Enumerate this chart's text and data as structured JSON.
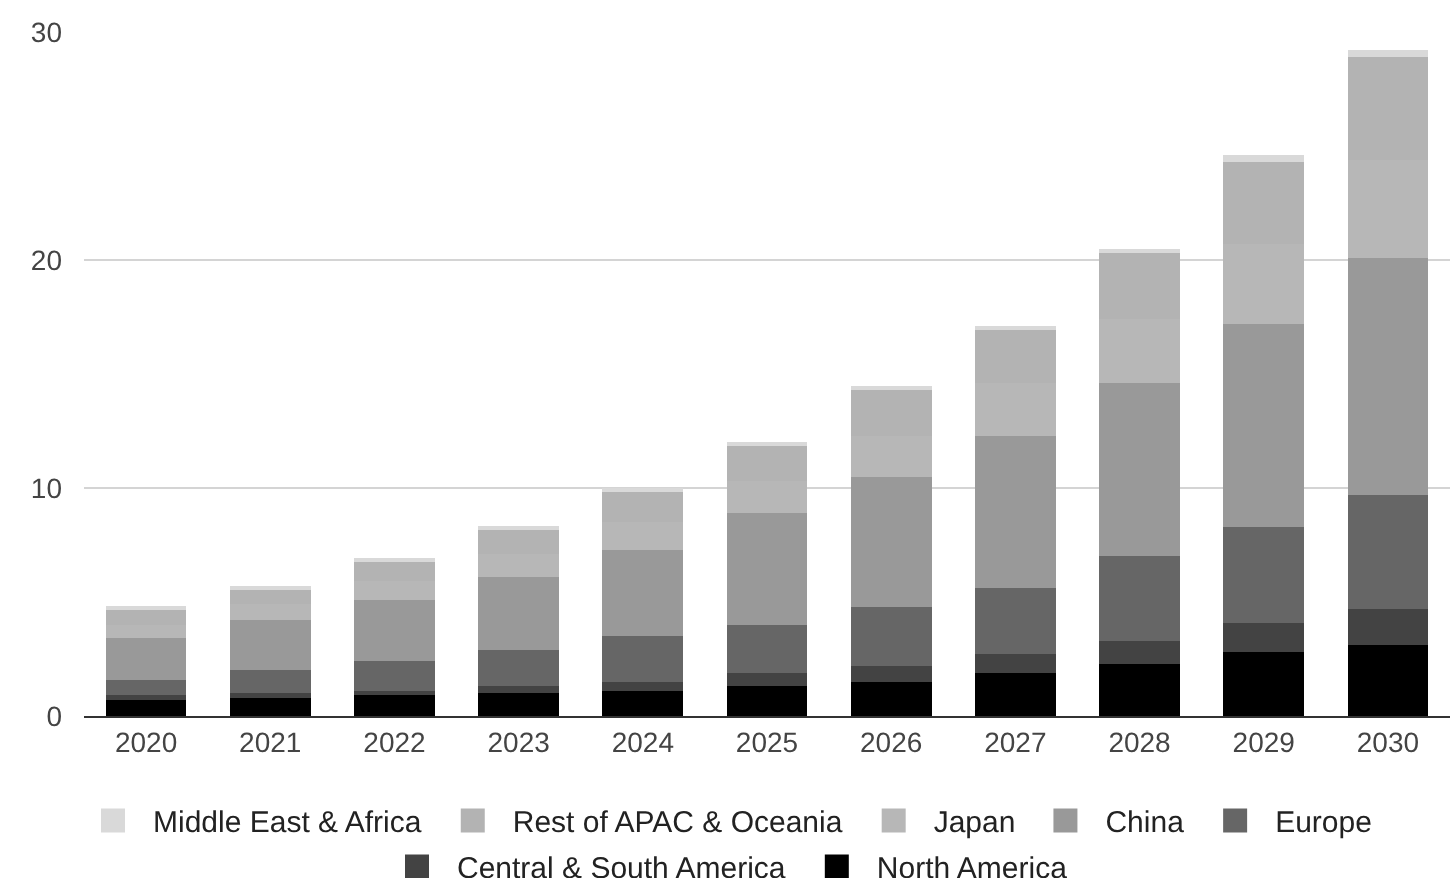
{
  "chart_data": {
    "type": "bar",
    "stacked": true,
    "categories": [
      "2020",
      "2021",
      "2022",
      "2023",
      "2024",
      "2025",
      "2026",
      "2027",
      "2028",
      "2029",
      "2030"
    ],
    "series": [
      {
        "name": "North America",
        "color": "#000000",
        "values": [
          0.7,
          0.8,
          0.9,
          1.0,
          1.1,
          1.3,
          1.5,
          1.9,
          2.3,
          2.8,
          3.1
        ]
      },
      {
        "name": "Central & South America",
        "color": "#434343",
        "values": [
          0.2,
          0.2,
          0.2,
          0.3,
          0.4,
          0.6,
          0.7,
          0.8,
          1.0,
          1.3,
          1.6
        ]
      },
      {
        "name": "Europe",
        "color": "#666666",
        "values": [
          0.7,
          1.0,
          1.3,
          1.6,
          2.0,
          2.1,
          2.6,
          2.9,
          3.7,
          4.2,
          5.0
        ]
      },
      {
        "name": "China",
        "color": "#999999",
        "values": [
          1.8,
          2.2,
          2.7,
          3.2,
          3.8,
          4.9,
          5.7,
          6.7,
          7.6,
          8.9,
          10.4
        ]
      },
      {
        "name": "Japan",
        "color": "#b7b7b7",
        "values": [
          0.6,
          0.7,
          0.8,
          1.0,
          1.2,
          1.4,
          1.8,
          2.3,
          2.8,
          3.5,
          4.3
        ]
      },
      {
        "name": "Rest of APAC & Oceania",
        "color": "#b3b3b3",
        "values": [
          0.7,
          0.7,
          0.9,
          1.1,
          1.4,
          1.6,
          2.0,
          2.4,
          2.9,
          3.6,
          4.5
        ]
      },
      {
        "name": "Middle East & Africa",
        "color": "#d9d9d9",
        "values": [
          0.1,
          0.1,
          0.1,
          0.1,
          0.1,
          0.1,
          0.1,
          0.1,
          0.2,
          0.3,
          0.3
        ]
      }
    ],
    "ylim": [
      0,
      30
    ],
    "yticks": [
      0,
      10,
      20,
      30
    ],
    "grid": "y",
    "legend": "bottom"
  }
}
